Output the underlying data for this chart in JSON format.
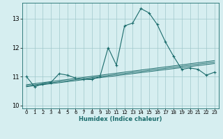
{
  "xlabel": "Humidex (Indice chaleur)",
  "ylabel": "",
  "background_color": "#d6eef0",
  "grid_color": "#a0c8cc",
  "line_color": "#1a6b6b",
  "xlim": [
    -0.5,
    23.5
  ],
  "ylim": [
    9.9,
    13.55
  ],
  "yticks": [
    10,
    11,
    12,
    13
  ],
  "xticks": [
    0,
    1,
    2,
    3,
    4,
    5,
    6,
    7,
    8,
    9,
    10,
    11,
    12,
    13,
    14,
    15,
    16,
    17,
    18,
    19,
    20,
    21,
    22,
    23
  ],
  "main_line": {
    "x": [
      0,
      1,
      2,
      3,
      4,
      5,
      6,
      7,
      8,
      9,
      10,
      11,
      12,
      13,
      14,
      15,
      16,
      17,
      18,
      19,
      20,
      21,
      22,
      23
    ],
    "y": [
      11.0,
      10.65,
      10.75,
      10.8,
      11.1,
      11.05,
      10.95,
      10.9,
      10.9,
      11.0,
      12.0,
      11.4,
      12.75,
      12.85,
      13.35,
      13.2,
      12.8,
      12.2,
      11.7,
      11.25,
      11.3,
      11.25,
      11.05,
      11.15
    ]
  },
  "trend_lines": [
    {
      "x": [
        0,
        23
      ],
      "y": [
        10.72,
        11.55
      ]
    },
    {
      "x": [
        0,
        23
      ],
      "y": [
        10.68,
        11.5
      ]
    },
    {
      "x": [
        0,
        23
      ],
      "y": [
        10.65,
        11.45
      ]
    }
  ],
  "tick_fontsize": 5,
  "xlabel_fontsize": 6,
  "xlabel_color": "#1a6b6b"
}
